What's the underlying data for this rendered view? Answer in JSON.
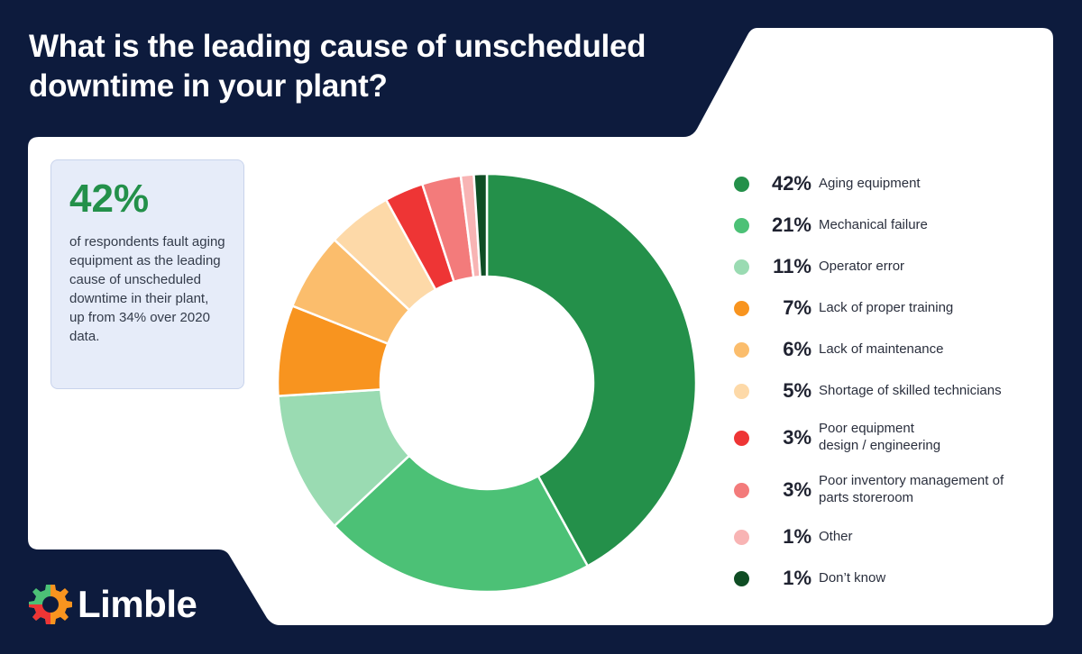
{
  "brand": {
    "name": "Limble"
  },
  "colors": {
    "background": "#0d1b3d",
    "panel": "#ffffff",
    "accent": "#23904a"
  },
  "callout": {
    "value": "42%",
    "text": "of respondents fault aging equipment as the leading cause of unscheduled downtime in their plant, up from 34% over 2020 data."
  },
  "chart_data": {
    "type": "pie",
    "title": "What is the leading cause of unscheduled downtime in your plant?",
    "legend_position": "right",
    "slices": [
      {
        "label": "Aging equipment",
        "value": 42,
        "display": "42%",
        "color": "#24904a"
      },
      {
        "label": "Mechanical failure",
        "value": 21,
        "display": "21%",
        "color": "#4cc176"
      },
      {
        "label": "Operator error",
        "value": 11,
        "display": "11%",
        "color": "#9adbb2"
      },
      {
        "label": "Lack of proper training",
        "value": 7,
        "display": "7%",
        "color": "#f8941f"
      },
      {
        "label": "Lack of maintenance",
        "value": 6,
        "display": "6%",
        "color": "#fbbd6c"
      },
      {
        "label": "Shortage of skilled technicians",
        "value": 5,
        "display": "5%",
        "color": "#fdd9a8"
      },
      {
        "label": "Poor equipment design / engineering",
        "value": 3,
        "display": "3%",
        "color": "#ee3535"
      },
      {
        "label": "Poor inventory management of parts storeroom",
        "value": 3,
        "display": "3%",
        "color": "#f37b7b"
      },
      {
        "label": "Other",
        "value": 1,
        "display": "1%",
        "color": "#f8b4b4"
      },
      {
        "label": "Don’t know",
        "value": 1,
        "display": "1%",
        "color": "#0f4d24"
      }
    ]
  }
}
